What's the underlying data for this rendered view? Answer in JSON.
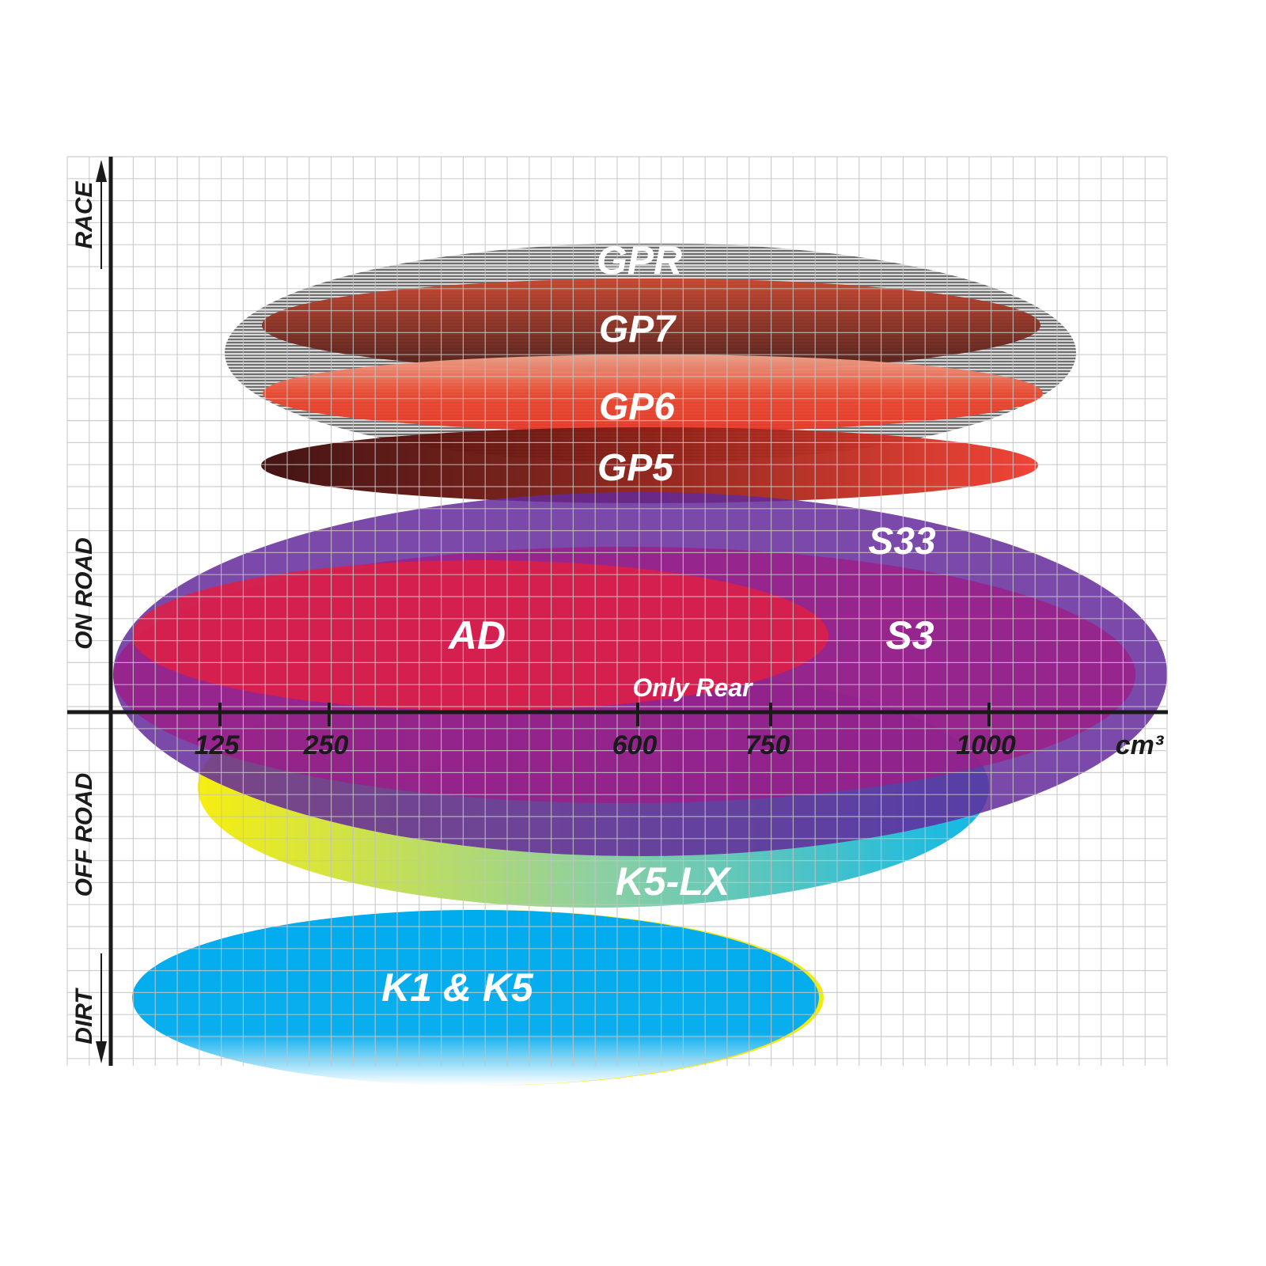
{
  "chart_data": {
    "type": "bubble-range",
    "x_axis": {
      "unit": "cm³",
      "ticks": [
        "125",
        "250",
        "600",
        "750",
        "1000"
      ]
    },
    "y_axis": {
      "labels": [
        "RACE",
        "ON ROAD",
        "OFF ROAD",
        "DIRT"
      ]
    },
    "grid": true,
    "products": [
      {
        "name": "GPR",
        "color": "#9a9a9a"
      },
      {
        "name": "GP7",
        "color": "#8a2a1c"
      },
      {
        "name": "GP6",
        "color": "#e8402c"
      },
      {
        "name": "GP5",
        "color": "#c0281e"
      },
      {
        "name": "S33",
        "color": "#63299a"
      },
      {
        "name": "S3",
        "color": "#9b1f8a"
      },
      {
        "name": "AD",
        "color": "#dc1f48"
      },
      {
        "name": "K5-LX",
        "color": "#e6e41c"
      },
      {
        "name": "K1 & K5",
        "color": "#00aeef"
      }
    ],
    "note": "Only Rear"
  }
}
